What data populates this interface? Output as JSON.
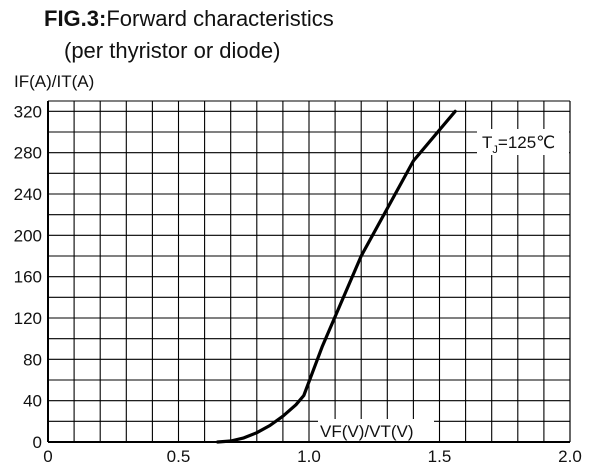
{
  "figure": {
    "fig_label": "FIG.3:",
    "title_text": "Forward characteristics",
    "subtitle": "(per thyristor or diode)"
  },
  "chart_data": {
    "type": "line",
    "title": "FIG.3:Forward characteristics",
    "subtitle": "(per thyristor or diode)",
    "ylabel": "IF(A)/IT(A)",
    "xlabel": "VF(V)/VT(V)",
    "xlim": [
      0,
      2.0
    ],
    "ylim": [
      0,
      330
    ],
    "x_ticks": [
      0,
      0.5,
      1.0,
      1.5,
      2.0
    ],
    "x_tick_labels": [
      "0",
      "0.5",
      "1.0",
      "1.5",
      "2.0"
    ],
    "y_ticks": [
      0,
      40,
      80,
      120,
      160,
      200,
      240,
      280,
      320
    ],
    "y_tick_labels": [
      "0",
      "40",
      "80",
      "120",
      "160",
      "200",
      "240",
      "280",
      "320"
    ],
    "grid": true,
    "grid_x_step": 0.1,
    "grid_y_step": 20,
    "annotation": "TJ=125℃",
    "annotation_parts": {
      "main": "T",
      "subscript": "J",
      "rest": "=125℃"
    },
    "series": [
      {
        "x": [
          0.65,
          0.7,
          0.75,
          0.8,
          0.85,
          0.9,
          0.95,
          0.98,
          1.05,
          1.2,
          1.4,
          1.56
        ],
        "y": [
          0,
          1,
          4,
          9,
          16,
          25,
          36,
          45,
          92,
          180,
          272,
          320
        ]
      }
    ],
    "colors": {
      "grid": "#000000",
      "line": "#000000",
      "background": "#ffffff"
    }
  }
}
